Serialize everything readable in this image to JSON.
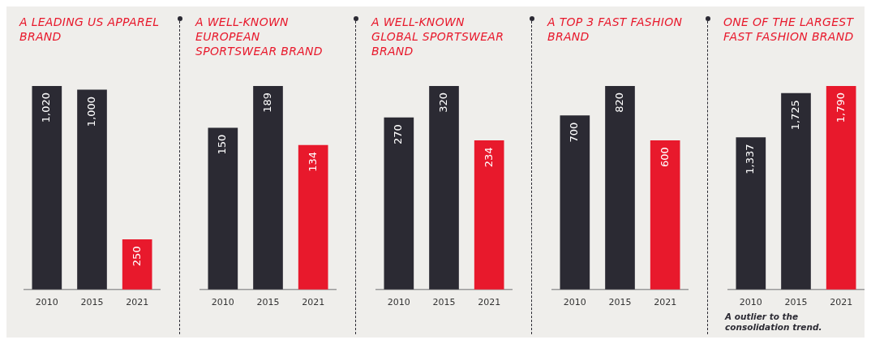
{
  "chart_data": [
    {
      "type": "bar",
      "title": "A LEADING US APPAREL BRAND",
      "categories": [
        "2010",
        "2015",
        "2021"
      ],
      "values": [
        1020,
        1000,
        250
      ],
      "value_labels": [
        "1,020",
        "1,000",
        "250"
      ],
      "colors": [
        "#2b2a33",
        "#2b2a33",
        "#e8192c"
      ],
      "grid": false,
      "legend": false
    },
    {
      "type": "bar",
      "title": "A WELL-KNOWN EUROPEAN SPORTSWEAR BRAND",
      "categories": [
        "2010",
        "2015",
        "2021"
      ],
      "values": [
        150,
        189,
        134
      ],
      "value_labels": [
        "150",
        "189",
        "134"
      ],
      "colors": [
        "#2b2a33",
        "#2b2a33",
        "#e8192c"
      ],
      "grid": false,
      "legend": false
    },
    {
      "type": "bar",
      "title": "A WELL-KNOWN GLOBAL SPORTSWEAR BRAND",
      "categories": [
        "2010",
        "2015",
        "2021"
      ],
      "values": [
        270,
        320,
        234
      ],
      "value_labels": [
        "270",
        "320",
        "234"
      ],
      "colors": [
        "#2b2a33",
        "#2b2a33",
        "#e8192c"
      ],
      "grid": false,
      "legend": false
    },
    {
      "type": "bar",
      "title": "A TOP 3 FAST FASHION BRAND",
      "categories": [
        "2010",
        "2015",
        "2021"
      ],
      "values": [
        700,
        820,
        600
      ],
      "value_labels": [
        "700",
        "820",
        "600"
      ],
      "colors": [
        "#2b2a33",
        "#2b2a33",
        "#e8192c"
      ],
      "grid": false,
      "legend": false
    },
    {
      "type": "bar",
      "title": "ONE OF THE LARGEST FAST FASHION BRAND",
      "categories": [
        "2010",
        "2015",
        "2021"
      ],
      "values": [
        1337,
        1725,
        1790
      ],
      "value_labels": [
        "1,337",
        "1,725",
        "1,790"
      ],
      "colors": [
        "#2b2a33",
        "#2b2a33",
        "#e8192c"
      ],
      "grid": false,
      "legend": false,
      "annotations": [
        "A outlier to the consolidation trend."
      ]
    }
  ]
}
